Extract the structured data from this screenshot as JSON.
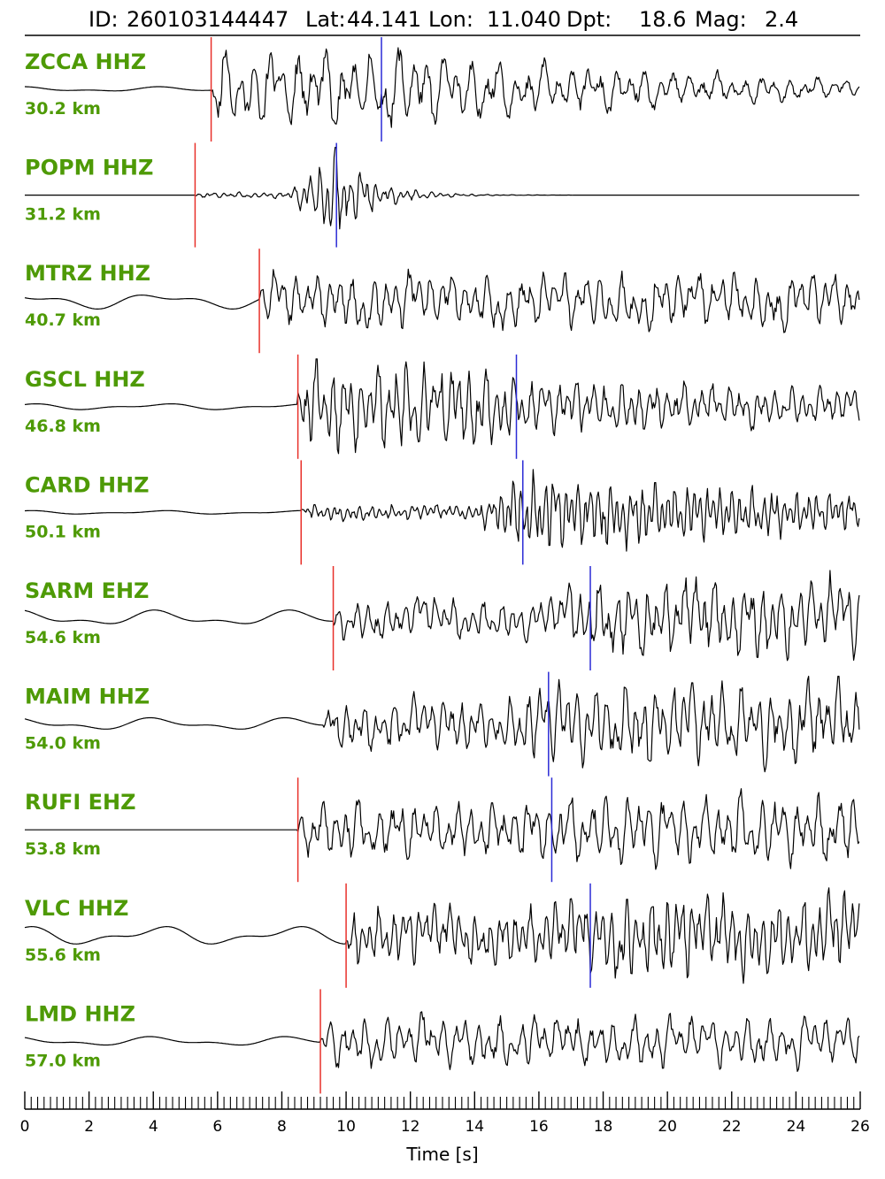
{
  "header": {
    "id_label": "ID:",
    "id": "260103144447",
    "lat_label": "Lat:",
    "lat": "44.141",
    "lon_label": "Lon:",
    "lon": "11.040",
    "dpt_label": "Dpt:",
    "dpt": "18.6",
    "mag_label": "Mag:",
    "mag": "2.4"
  },
  "colors": {
    "station_label": "#4e9a06",
    "p_pick": "#e8302a",
    "s_pick": "#2b2bd6",
    "trace": "#000000"
  },
  "chart_data": {
    "type": "line",
    "xlabel": "Time [s]",
    "xlim": [
      0,
      26
    ],
    "xticks": [
      "0",
      "2",
      "4",
      "6",
      "8",
      "10",
      "12",
      "14",
      "16",
      "18",
      "20",
      "22",
      "24",
      "26"
    ],
    "minor_tick_step": 0.2,
    "traces": [
      {
        "station": "ZCCA HHZ",
        "distance": "30.2 km",
        "p_pick": 5.8,
        "s_pick": 11.1,
        "noise": 0.08,
        "p_amp": 0.8,
        "s_amp": 0.9,
        "decay": 0.1,
        "period": 0.45,
        "seed": 11
      },
      {
        "station": "POPM HHZ",
        "distance": "31.2 km",
        "p_pick": 5.3,
        "s_pick": 9.7,
        "noise": 0.0,
        "p_amp": 0.06,
        "s_amp": 1.0,
        "decay": 0.9,
        "period": 0.25,
        "seed": 23
      },
      {
        "station": "MTRZ HHZ",
        "distance": "40.7 km",
        "p_pick": 7.3,
        "s_pick": null,
        "noise": 0.25,
        "p_amp": 0.55,
        "s_amp": 0.75,
        "decay": 0.0,
        "period": 0.35,
        "seed": 37
      },
      {
        "station": "GSCL HHZ",
        "distance": "46.8 km",
        "p_pick": 8.5,
        "s_pick": 15.3,
        "noise": 0.1,
        "p_amp": 0.9,
        "s_amp": 0.6,
        "decay": 0.05,
        "period": 0.28,
        "seed": 41
      },
      {
        "station": "CARD HHZ",
        "distance": "50.1 km",
        "p_pick": 8.6,
        "s_pick": 15.5,
        "noise": 0.06,
        "p_amp": 0.15,
        "s_amp": 0.85,
        "decay": 0.08,
        "period": 0.2,
        "seed": 53
      },
      {
        "station": "SARM EHZ",
        "distance": "54.6 km",
        "p_pick": 9.6,
        "s_pick": 17.6,
        "noise": 0.25,
        "p_amp": 0.4,
        "s_amp": 0.75,
        "decay": 0.0,
        "period": 0.3,
        "seed": 67
      },
      {
        "station": "MAIM HHZ",
        "distance": "54.0 km",
        "p_pick": null,
        "s_pick": 16.3,
        "noise": 0.2,
        "p_amp": 0.5,
        "s_amp": 0.85,
        "decay": 0.0,
        "period": 0.3,
        "seed": 79
      },
      {
        "station": "RUFI EHZ",
        "distance": "53.8 km",
        "p_pick": 8.5,
        "s_pick": 16.4,
        "noise": 0.0,
        "p_amp": 0.6,
        "s_amp": 0.7,
        "decay": 0.0,
        "period": 0.35,
        "seed": 83
      },
      {
        "station": "VLC HHZ",
        "distance": "55.6 km",
        "p_pick": 10.0,
        "s_pick": 17.6,
        "noise": 0.3,
        "p_amp": 0.55,
        "s_amp": 0.8,
        "decay": 0.0,
        "period": 0.25,
        "seed": 97
      },
      {
        "station": "LMD HHZ",
        "distance": "57.0 km",
        "p_pick": 9.2,
        "s_pick": null,
        "noise": 0.15,
        "p_amp": 0.5,
        "s_amp": 0.7,
        "decay": 0.0,
        "period": 0.35,
        "seed": 101
      }
    ]
  }
}
